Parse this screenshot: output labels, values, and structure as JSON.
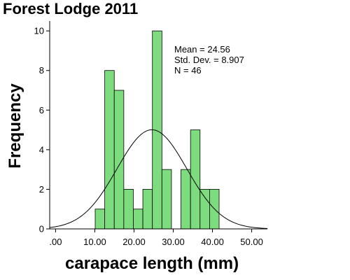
{
  "chart_data": {
    "type": "bar",
    "title": "Forest Lodge 2011",
    "xlabel": "carapace length (mm)",
    "ylabel": "Frequency",
    "xlim": [
      -1.5,
      54
    ],
    "ylim": [
      0,
      10.5
    ],
    "x_ticks": [
      0,
      10,
      20,
      30,
      40,
      50
    ],
    "x_tick_labels": [
      ".00",
      "10.00",
      "20.00",
      "30.00",
      "40.00",
      "50.00"
    ],
    "y_ticks": [
      0,
      2,
      4,
      6,
      8,
      10
    ],
    "y_tick_labels": [
      "0",
      "2",
      "4",
      "6",
      "8",
      "10"
    ],
    "bin_width": 2.43,
    "bins": [
      {
        "start": 10.1,
        "value": 1
      },
      {
        "start": 12.53,
        "value": 8
      },
      {
        "start": 14.96,
        "value": 7
      },
      {
        "start": 17.39,
        "value": 2
      },
      {
        "start": 19.82,
        "value": 1
      },
      {
        "start": 22.25,
        "value": 2
      },
      {
        "start": 24.68,
        "value": 10
      },
      {
        "start": 27.11,
        "value": 3
      },
      {
        "start": 29.54,
        "value": 0
      },
      {
        "start": 31.97,
        "value": 3
      },
      {
        "start": 34.4,
        "value": 5
      },
      {
        "start": 36.83,
        "value": 2
      },
      {
        "start": 39.26,
        "value": 2
      }
    ],
    "normal_curve": {
      "mean": 24.56,
      "sd": 8.907,
      "n": 46
    },
    "stats": {
      "mean_label": "Mean = 24.56",
      "sd_label": "Std. Dev. = 8.907",
      "n_label": "N = 46"
    },
    "bar_color": "#7ddc7d",
    "bar_stroke": "#000000",
    "grid": false,
    "legend": "none"
  }
}
